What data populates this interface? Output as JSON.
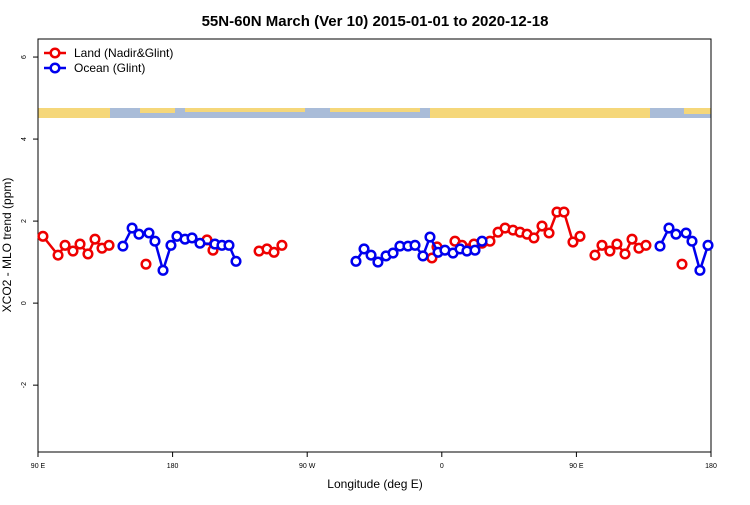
{
  "chart_data": {
    "type": "line",
    "title": "55N-60N March (Ver 10)   2015-01-01 to 2020-12-18",
    "x_label": "Longitude (deg E)",
    "y_label": "XCO2 - MLO trend (ppm)",
    "xlim": [
      90,
      540
    ],
    "ylim": [
      -3.63,
      6.44
    ],
    "xticks": [
      {
        "value": 90,
        "label": "90 E"
      },
      {
        "value": 180,
        "label": "180"
      },
      {
        "value": 270,
        "label": "90 W"
      },
      {
        "value": 360,
        "label": "0"
      },
      {
        "value": 450,
        "label": "90 E"
      },
      {
        "value": 540,
        "label": "180"
      }
    ],
    "yticks": [
      -2,
      0,
      2,
      4,
      6
    ],
    "legend": "top-left",
    "series": [
      {
        "name": "Land (Nadir&Glint)",
        "color": "#ee0000",
        "x": [
          93.3,
          103.4,
          108.1,
          113.4,
          118.1,
          123.4,
          128.1,
          132.8,
          137.5,
          null,
          162.2,
          null,
          203.0,
          207.0,
          null,
          237.8,
          243.1,
          247.8,
          253.1,
          null,
          353.4,
          356.8,
          null,
          368.8,
          373.5,
          381.5,
          386.9,
          392.2,
          397.6,
          402.3,
          407.6,
          412.3,
          417.0,
          421.6,
          427.0,
          431.7,
          437.0,
          441.7,
          447.7,
          452.4,
          null,
          462.4,
          467.1,
          472.4,
          477.1,
          482.5,
          487.2,
          491.8,
          496.5,
          null,
          520.6
        ],
        "values": [
          1.63,
          1.17,
          1.41,
          1.27,
          1.44,
          1.2,
          1.56,
          1.34,
          1.41,
          null,
          0.95,
          null,
          1.54,
          1.29,
          null,
          1.27,
          1.32,
          1.24,
          1.41,
          null,
          1.1,
          1.37,
          null,
          1.51,
          1.41,
          1.44,
          1.46,
          1.51,
          1.73,
          1.83,
          1.78,
          1.73,
          1.68,
          1.59,
          1.88,
          1.71,
          2.22,
          2.22,
          1.49,
          1.63,
          null,
          1.17,
          1.41,
          1.27,
          1.44,
          1.2,
          1.56,
          1.34,
          1.41,
          null,
          0.95
        ]
      },
      {
        "name": "Ocean (Glint)",
        "color": "#0000ee",
        "x": [
          146.8,
          152.9,
          157.5,
          164.2,
          168.2,
          173.6,
          178.9,
          182.9,
          188.3,
          193.0,
          198.3,
          208.3,
          213.0,
          217.7,
          222.4,
          null,
          302.6,
          308.0,
          312.7,
          317.3,
          322.7,
          327.4,
          332.0,
          337.4,
          342.1,
          347.4,
          352.1,
          357.5,
          362.1,
          367.5,
          372.2,
          376.8,
          382.2,
          386.9,
          null,
          505.9,
          511.9,
          516.6,
          523.3,
          527.3,
          532.6,
          538.0
        ],
        "values": [
          1.39,
          1.83,
          1.68,
          1.71,
          1.51,
          0.8,
          1.41,
          1.63,
          1.56,
          1.59,
          1.46,
          1.44,
          1.41,
          1.41,
          1.02,
          null,
          1.02,
          1.32,
          1.17,
          1.0,
          1.15,
          1.22,
          1.39,
          1.39,
          1.41,
          1.15,
          1.61,
          1.24,
          1.29,
          1.22,
          1.32,
          1.27,
          1.29,
          1.51,
          null,
          1.39,
          1.83,
          1.68,
          1.71,
          1.51,
          0.8,
          1.41
        ]
      }
    ]
  }
}
